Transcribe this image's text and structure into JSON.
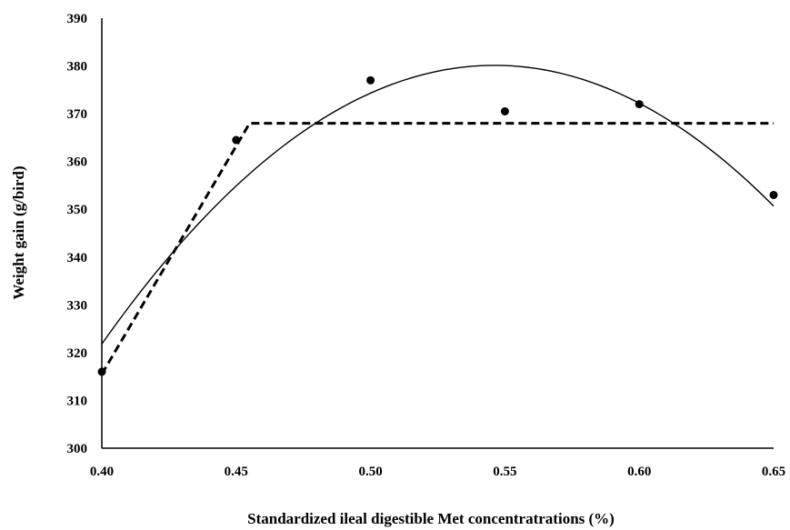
{
  "chart_data": {
    "type": "scatter",
    "title": "",
    "xlabel": "Standardized ileal digestible Met concentratrations (%)",
    "ylabel": "Weight gain (g/bird)",
    "xlim": [
      0.4,
      0.65
    ],
    "ylim": [
      300,
      390
    ],
    "x_ticks": [
      "0.40",
      "0.45",
      "0.50",
      "0.55",
      "0.60",
      "0.65"
    ],
    "y_ticks": [
      "300",
      "310",
      "320",
      "330",
      "340",
      "350",
      "360",
      "370",
      "380",
      "390"
    ],
    "grid": false,
    "legend": "none",
    "series": [
      {
        "kind": "points",
        "marker": "filled-circle",
        "color": "#000000",
        "x": [
          0.4,
          0.45,
          0.5,
          0.55,
          0.6,
          0.65
        ],
        "y": [
          316,
          364.5,
          377,
          370.5,
          372,
          353
        ]
      },
      {
        "kind": "broken-line",
        "style": "dashed",
        "color": "#000000",
        "x": [
          0.4,
          0.455,
          0.65
        ],
        "y": [
          315.5,
          368,
          368
        ]
      },
      {
        "kind": "quadratic-curve",
        "style": "solid",
        "color": "#000000",
        "x": [
          0.4,
          0.45,
          0.5,
          0.545,
          0.6,
          0.65
        ],
        "y": [
          322,
          354.5,
          374.5,
          380,
          372.5,
          350.5
        ]
      }
    ]
  }
}
